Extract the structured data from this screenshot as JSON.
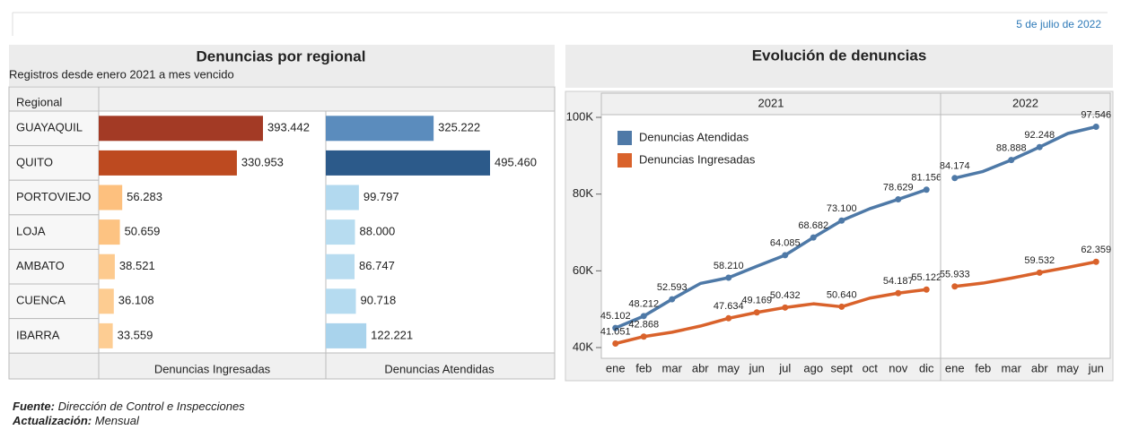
{
  "header": {
    "date": "5 de julio de 2022"
  },
  "chart_data": [
    {
      "type": "bar",
      "orientation": "horizontal",
      "title": "Denuncias por regional",
      "subtitle": "Registros desde enero 2021 a mes vencido",
      "category_label": "Regional",
      "categories": [
        "GUAYAQUIL",
        "QUITO",
        "PORTOVIEJO",
        "LOJA",
        "AMBATO",
        "CUENCA",
        "IBARRA"
      ],
      "series": [
        {
          "name": "Denuncias Ingresadas",
          "colors": [
            "#a33a25",
            "#bd4a20",
            "#fdc07e",
            "#fdc382",
            "#fdca8e",
            "#fdcc91",
            "#fdcd93"
          ],
          "values": [
            393442,
            330953,
            56283,
            50659,
            38521,
            36108,
            33559
          ],
          "value_labels": [
            "393.442",
            "330.953",
            "56.283",
            "50.659",
            "38.521",
            "36.108",
            "33.559"
          ]
        },
        {
          "name": "Denuncias Atendidas",
          "colors": [
            "#5b8cbd",
            "#2c5a8a",
            "#b2d9ef",
            "#b7dcf0",
            "#b8dcf0",
            "#b5dbf0",
            "#a9d3ec"
          ],
          "values": [
            325222,
            495460,
            99797,
            88000,
            86747,
            90718,
            122221
          ],
          "value_labels": [
            "325.222",
            "495.460",
            "99.797",
            "88.000",
            "86.747",
            "90.718",
            "122.221"
          ]
        }
      ]
    },
    {
      "type": "line",
      "title": "Evolución de denuncias",
      "ylim": [
        37200,
        100700
      ],
      "yticks": [
        {
          "value": 40000,
          "label": "40K"
        },
        {
          "value": 60000,
          "label": "60K"
        },
        {
          "value": 80000,
          "label": "80K"
        },
        {
          "value": 100000,
          "label": "100K"
        }
      ],
      "grid": false,
      "legend": "top-left",
      "series": [
        {
          "name": "Denuncias Atendidas",
          "color": "#4e79a7"
        },
        {
          "name": "Denuncias Ingresadas",
          "color": "#d9622b"
        }
      ],
      "panels": [
        {
          "label": "2021",
          "categories": [
            "ene",
            "feb",
            "mar",
            "abr",
            "may",
            "jun",
            "jul",
            "ago",
            "sept",
            "oct",
            "nov",
            "dic"
          ],
          "series": [
            {
              "values": [
                45102,
                48212,
                52593,
                56700,
                58210,
                61200,
                64085,
                68682,
                73100,
                76200,
                78629,
                81156
              ],
              "value_labels": [
                "45.102",
                "48.212",
                "52.593",
                null,
                "58.210",
                null,
                "64.085",
                "68.682",
                "73.100",
                null,
                "78.629",
                "81.156"
              ]
            },
            {
              "values": [
                41051,
                42868,
                44000,
                45600,
                47634,
                49169,
                50432,
                51400,
                50640,
                52900,
                54187,
                55122
              ],
              "value_labels": [
                "41.051",
                "42.868",
                null,
                null,
                "47.634",
                "49.169",
                "50.432",
                null,
                "50.640",
                null,
                "54.187",
                "55.122"
              ]
            }
          ]
        },
        {
          "label": "2022",
          "categories": [
            "ene",
            "feb",
            "mar",
            "abr",
            "may",
            "jun"
          ],
          "series": [
            {
              "values": [
                84174,
                85900,
                88888,
                92248,
                95800,
                97546
              ],
              "value_labels": [
                "84.174",
                null,
                "88.888",
                "92.248",
                null,
                "97.546"
              ]
            },
            {
              "values": [
                55933,
                56800,
                58100,
                59532,
                60900,
                62359
              ],
              "value_labels": [
                "55.933",
                null,
                null,
                "59.532",
                null,
                "62.359"
              ]
            }
          ]
        }
      ]
    }
  ],
  "footer": {
    "source": {
      "label": "Fuente:",
      "value": "Dirección de Control e Inspecciones"
    },
    "update": {
      "label": "Actualización:",
      "value": "Mensual"
    }
  }
}
